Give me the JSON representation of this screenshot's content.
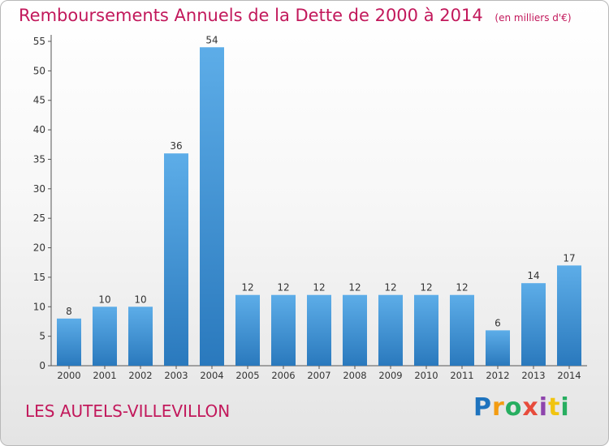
{
  "chart_data": {
    "type": "bar",
    "title": "Remboursements Annuels de la Dette de 2000 à 2014",
    "unit": "(en milliers d'€)",
    "categories": [
      "2000",
      "2001",
      "2002",
      "2003",
      "2004",
      "2005",
      "2006",
      "2007",
      "2008",
      "2009",
      "2010",
      "2011",
      "2012",
      "2013",
      "2014"
    ],
    "values": [
      8,
      10,
      10,
      36,
      54,
      12,
      12,
      12,
      12,
      12,
      12,
      12,
      6,
      14,
      17
    ],
    "ylim": [
      0,
      55
    ],
    "yticks": [
      0,
      5,
      10,
      15,
      20,
      25,
      30,
      35,
      40,
      45,
      50,
      55
    ],
    "grid": false,
    "bar_color": "#3d8fd6",
    "title_color": "#c2185b"
  },
  "footer": {
    "town": "LES AUTELS-VILLEVILLON",
    "logo_letters": [
      "P",
      "r",
      "o",
      "x",
      "i",
      "t",
      "i"
    ],
    "logo_colors": [
      "#1e73be",
      "#f39c12",
      "#27ae60",
      "#e74c3c",
      "#8e44ad",
      "#f1c40f",
      "#27ae60"
    ]
  }
}
